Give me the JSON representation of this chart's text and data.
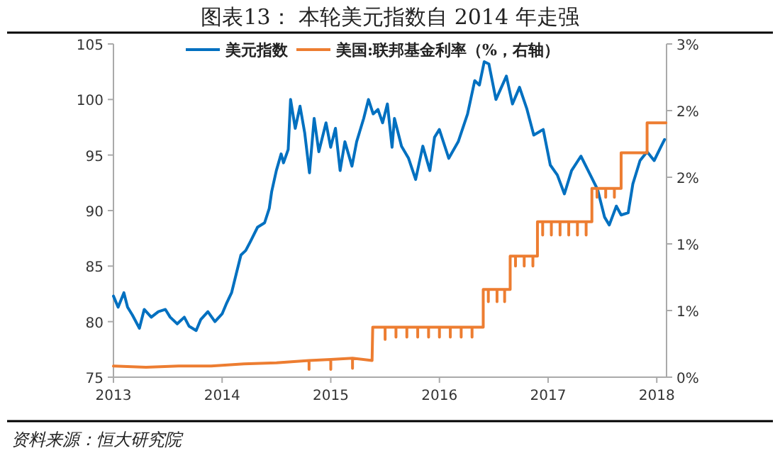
{
  "chart_data": {
    "type": "line",
    "title": "图表13：      本轮美元指数自 2014 年走强",
    "annotations": [
      "资料来源：恒大研究院"
    ],
    "xlim": [
      2013,
      2018.09
    ],
    "xticks": [
      2013,
      2014,
      2015,
      2016,
      2017,
      2018
    ],
    "ylim": [
      75,
      105
    ],
    "yticks": [
      75,
      80,
      85,
      90,
      95,
      100,
      105
    ],
    "y2lim": [
      0,
      3
    ],
    "y2ticks": [
      {
        "value": 0,
        "label": "0%"
      },
      {
        "value": 0.6,
        "label": "1%"
      },
      {
        "value": 1.2,
        "label": "1%"
      },
      {
        "value": 1.8,
        "label": "2%"
      },
      {
        "value": 2.4,
        "label": "2%"
      },
      {
        "value": 3,
        "label": "3%"
      }
    ],
    "legend": "top",
    "grid": false,
    "marker": "none",
    "line_style": "solid",
    "series": [
      {
        "name": "美元指数",
        "color": "#0070c0",
        "x": [
          2013.0,
          2013.043,
          2013.096,
          2013.13,
          2013.174,
          2013.239,
          2013.283,
          2013.348,
          2013.413,
          2013.478,
          2013.522,
          2013.587,
          2013.652,
          2013.695,
          2013.761,
          2013.804,
          2013.869,
          2013.934,
          2014.0,
          2014.043,
          2014.087,
          2014.13,
          2014.173,
          2014.217,
          2014.26,
          2014.326,
          2014.391,
          2014.434,
          2014.456,
          2014.499,
          2014.543,
          2014.565,
          2014.608,
          2014.63,
          2014.673,
          2014.717,
          2014.76,
          2014.804,
          2014.847,
          2014.89,
          2014.956,
          2014.999,
          2015.043,
          2015.086,
          2015.13,
          2015.195,
          2015.238,
          2015.303,
          2015.347,
          2015.39,
          2015.434,
          2015.477,
          2015.521,
          2015.564,
          2015.586,
          2015.651,
          2015.716,
          2015.781,
          2015.847,
          2015.912,
          2015.955,
          2015.999,
          2016.086,
          2016.173,
          2016.259,
          2016.325,
          2016.368,
          2016.412,
          2016.455,
          2016.52,
          2016.616,
          2016.672,
          2016.737,
          2016.803,
          2016.868,
          2016.955,
          2017.02,
          2017.085,
          2017.15,
          2017.216,
          2017.302,
          2017.389,
          2017.455,
          2017.52,
          2017.563,
          2017.628,
          2017.672,
          2017.737,
          2017.78,
          2017.846,
          2017.911,
          2017.976,
          2018.041,
          2018.072
        ],
        "values": [
          82.3,
          81.3,
          82.6,
          81.3,
          80.6,
          79.4,
          81.1,
          80.4,
          80.9,
          81.1,
          80.4,
          79.8,
          80.4,
          79.6,
          79.2,
          80.2,
          80.9,
          80.0,
          80.7,
          81.7,
          82.6,
          84.3,
          86.0,
          86.4,
          87.2,
          88.5,
          88.9,
          90.2,
          91.7,
          93.6,
          95.1,
          94.3,
          95.5,
          100.0,
          97.4,
          99.4,
          97.0,
          93.4,
          98.3,
          95.3,
          97.9,
          95.7,
          97.4,
          93.6,
          96.2,
          94.0,
          96.2,
          98.3,
          100.0,
          98.7,
          99.1,
          97.9,
          99.6,
          95.7,
          98.3,
          95.8,
          94.7,
          92.8,
          95.8,
          93.6,
          96.6,
          97.3,
          94.7,
          96.2,
          98.7,
          101.7,
          101.3,
          103.4,
          103.2,
          100.0,
          102.1,
          99.6,
          101.1,
          99.2,
          96.8,
          97.3,
          94.1,
          93.2,
          91.5,
          93.6,
          94.9,
          93.2,
          91.9,
          89.4,
          88.7,
          90.4,
          89.6,
          89.8,
          92.4,
          94.5,
          95.3,
          94.5,
          95.8,
          96.4
        ]
      },
      {
        "name": "美国:联邦基金利率（%，右轴）",
        "color": "#ed7d31",
        "axis": "y2",
        "x": [
          2013.0,
          2013.3,
          2013.6,
          2013.9,
          2014.2,
          2014.5,
          2014.8,
          2014.8,
          2014.8,
          2015.0,
          2015.0,
          2015.0,
          2015.2,
          2015.2,
          2015.2,
          2015.38,
          2015.386,
          2015.5,
          2015.5,
          2015.5,
          2015.6,
          2015.6,
          2015.6,
          2015.7,
          2015.7,
          2015.7,
          2015.8,
          2015.8,
          2015.8,
          2015.9,
          2015.9,
          2015.9,
          2016.0,
          2016.0,
          2016.0,
          2016.1,
          2016.1,
          2016.1,
          2016.2,
          2016.2,
          2016.2,
          2016.3,
          2016.3,
          2016.3,
          2016.403,
          2016.403,
          2016.45,
          2016.45,
          2016.45,
          2016.53,
          2016.53,
          2016.53,
          2016.6,
          2016.6,
          2016.6,
          2016.651,
          2016.651,
          2016.7,
          2016.7,
          2016.7,
          2016.78,
          2016.78,
          2016.78,
          2016.86,
          2016.86,
          2016.86,
          2016.902,
          2016.902,
          2016.95,
          2016.95,
          2016.95,
          2017.03,
          2017.03,
          2017.03,
          2017.11,
          2017.11,
          2017.11,
          2017.19,
          2017.19,
          2017.19,
          2017.27,
          2017.27,
          2017.27,
          2017.35,
          2017.35,
          2017.35,
          2017.403,
          2017.403,
          2017.45,
          2017.45,
          2017.45,
          2017.53,
          2017.53,
          2017.53,
          2017.61,
          2017.61,
          2017.61,
          2017.672,
          2017.672,
          2017.911,
          2017.911,
          2018.085
        ],
        "values": [
          0.1,
          0.09,
          0.1,
          0.1,
          0.12,
          0.13,
          0.15,
          0.07,
          0.15,
          0.16,
          0.07,
          0.16,
          0.17,
          0.08,
          0.17,
          0.15,
          0.45,
          0.45,
          0.34,
          0.45,
          0.45,
          0.36,
          0.45,
          0.45,
          0.36,
          0.45,
          0.45,
          0.36,
          0.45,
          0.45,
          0.36,
          0.45,
          0.45,
          0.36,
          0.45,
          0.45,
          0.36,
          0.45,
          0.45,
          0.36,
          0.45,
          0.45,
          0.36,
          0.45,
          0.45,
          0.79,
          0.79,
          0.68,
          0.79,
          0.79,
          0.68,
          0.79,
          0.79,
          0.68,
          0.79,
          0.79,
          1.09,
          1.09,
          1.0,
          1.09,
          1.09,
          1.0,
          1.09,
          1.09,
          1.0,
          1.09,
          1.09,
          1.4,
          1.4,
          1.28,
          1.4,
          1.4,
          1.28,
          1.4,
          1.4,
          1.28,
          1.4,
          1.4,
          1.28,
          1.4,
          1.4,
          1.28,
          1.4,
          1.4,
          1.28,
          1.4,
          1.4,
          1.7,
          1.7,
          1.62,
          1.7,
          1.7,
          1.62,
          1.7,
          1.7,
          1.62,
          1.7,
          1.7,
          2.02,
          2.02,
          2.29,
          2.29
        ]
      }
    ]
  }
}
